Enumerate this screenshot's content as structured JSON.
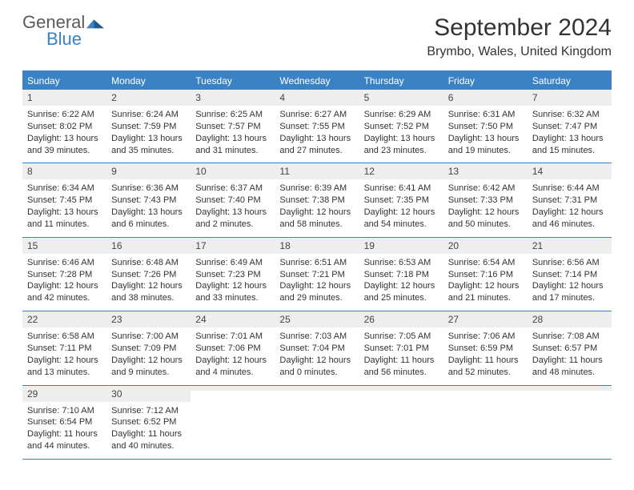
{
  "brand": {
    "name_part1": "General",
    "name_part2": "Blue",
    "color_gray": "#5a5a5a",
    "color_blue": "#3b82c4"
  },
  "title": "September 2024",
  "location": "Brymbo, Wales, United Kingdom",
  "accent_color": "#3b82c4",
  "header_bg": "#eeeeee",
  "day_names": [
    "Sunday",
    "Monday",
    "Tuesday",
    "Wednesday",
    "Thursday",
    "Friday",
    "Saturday"
  ],
  "days": [
    {
      "n": "1",
      "sunrise": "Sunrise: 6:22 AM",
      "sunset": "Sunset: 8:02 PM",
      "day1": "Daylight: 13 hours",
      "day2": "and 39 minutes."
    },
    {
      "n": "2",
      "sunrise": "Sunrise: 6:24 AM",
      "sunset": "Sunset: 7:59 PM",
      "day1": "Daylight: 13 hours",
      "day2": "and 35 minutes."
    },
    {
      "n": "3",
      "sunrise": "Sunrise: 6:25 AM",
      "sunset": "Sunset: 7:57 PM",
      "day1": "Daylight: 13 hours",
      "day2": "and 31 minutes."
    },
    {
      "n": "4",
      "sunrise": "Sunrise: 6:27 AM",
      "sunset": "Sunset: 7:55 PM",
      "day1": "Daylight: 13 hours",
      "day2": "and 27 minutes."
    },
    {
      "n": "5",
      "sunrise": "Sunrise: 6:29 AM",
      "sunset": "Sunset: 7:52 PM",
      "day1": "Daylight: 13 hours",
      "day2": "and 23 minutes."
    },
    {
      "n": "6",
      "sunrise": "Sunrise: 6:31 AM",
      "sunset": "Sunset: 7:50 PM",
      "day1": "Daylight: 13 hours",
      "day2": "and 19 minutes."
    },
    {
      "n": "7",
      "sunrise": "Sunrise: 6:32 AM",
      "sunset": "Sunset: 7:47 PM",
      "day1": "Daylight: 13 hours",
      "day2": "and 15 minutes."
    },
    {
      "n": "8",
      "sunrise": "Sunrise: 6:34 AM",
      "sunset": "Sunset: 7:45 PM",
      "day1": "Daylight: 13 hours",
      "day2": "and 11 minutes."
    },
    {
      "n": "9",
      "sunrise": "Sunrise: 6:36 AM",
      "sunset": "Sunset: 7:43 PM",
      "day1": "Daylight: 13 hours",
      "day2": "and 6 minutes."
    },
    {
      "n": "10",
      "sunrise": "Sunrise: 6:37 AM",
      "sunset": "Sunset: 7:40 PM",
      "day1": "Daylight: 13 hours",
      "day2": "and 2 minutes."
    },
    {
      "n": "11",
      "sunrise": "Sunrise: 6:39 AM",
      "sunset": "Sunset: 7:38 PM",
      "day1": "Daylight: 12 hours",
      "day2": "and 58 minutes."
    },
    {
      "n": "12",
      "sunrise": "Sunrise: 6:41 AM",
      "sunset": "Sunset: 7:35 PM",
      "day1": "Daylight: 12 hours",
      "day2": "and 54 minutes."
    },
    {
      "n": "13",
      "sunrise": "Sunrise: 6:42 AM",
      "sunset": "Sunset: 7:33 PM",
      "day1": "Daylight: 12 hours",
      "day2": "and 50 minutes."
    },
    {
      "n": "14",
      "sunrise": "Sunrise: 6:44 AM",
      "sunset": "Sunset: 7:31 PM",
      "day1": "Daylight: 12 hours",
      "day2": "and 46 minutes."
    },
    {
      "n": "15",
      "sunrise": "Sunrise: 6:46 AM",
      "sunset": "Sunset: 7:28 PM",
      "day1": "Daylight: 12 hours",
      "day2": "and 42 minutes."
    },
    {
      "n": "16",
      "sunrise": "Sunrise: 6:48 AM",
      "sunset": "Sunset: 7:26 PM",
      "day1": "Daylight: 12 hours",
      "day2": "and 38 minutes."
    },
    {
      "n": "17",
      "sunrise": "Sunrise: 6:49 AM",
      "sunset": "Sunset: 7:23 PM",
      "day1": "Daylight: 12 hours",
      "day2": "and 33 minutes."
    },
    {
      "n": "18",
      "sunrise": "Sunrise: 6:51 AM",
      "sunset": "Sunset: 7:21 PM",
      "day1": "Daylight: 12 hours",
      "day2": "and 29 minutes."
    },
    {
      "n": "19",
      "sunrise": "Sunrise: 6:53 AM",
      "sunset": "Sunset: 7:18 PM",
      "day1": "Daylight: 12 hours",
      "day2": "and 25 minutes."
    },
    {
      "n": "20",
      "sunrise": "Sunrise: 6:54 AM",
      "sunset": "Sunset: 7:16 PM",
      "day1": "Daylight: 12 hours",
      "day2": "and 21 minutes."
    },
    {
      "n": "21",
      "sunrise": "Sunrise: 6:56 AM",
      "sunset": "Sunset: 7:14 PM",
      "day1": "Daylight: 12 hours",
      "day2": "and 17 minutes."
    },
    {
      "n": "22",
      "sunrise": "Sunrise: 6:58 AM",
      "sunset": "Sunset: 7:11 PM",
      "day1": "Daylight: 12 hours",
      "day2": "and 13 minutes."
    },
    {
      "n": "23",
      "sunrise": "Sunrise: 7:00 AM",
      "sunset": "Sunset: 7:09 PM",
      "day1": "Daylight: 12 hours",
      "day2": "and 9 minutes."
    },
    {
      "n": "24",
      "sunrise": "Sunrise: 7:01 AM",
      "sunset": "Sunset: 7:06 PM",
      "day1": "Daylight: 12 hours",
      "day2": "and 4 minutes."
    },
    {
      "n": "25",
      "sunrise": "Sunrise: 7:03 AM",
      "sunset": "Sunset: 7:04 PM",
      "day1": "Daylight: 12 hours",
      "day2": "and 0 minutes."
    },
    {
      "n": "26",
      "sunrise": "Sunrise: 7:05 AM",
      "sunset": "Sunset: 7:01 PM",
      "day1": "Daylight: 11 hours",
      "day2": "and 56 minutes."
    },
    {
      "n": "27",
      "sunrise": "Sunrise: 7:06 AM",
      "sunset": "Sunset: 6:59 PM",
      "day1": "Daylight: 11 hours",
      "day2": "and 52 minutes."
    },
    {
      "n": "28",
      "sunrise": "Sunrise: 7:08 AM",
      "sunset": "Sunset: 6:57 PM",
      "day1": "Daylight: 11 hours",
      "day2": "and 48 minutes."
    },
    {
      "n": "29",
      "sunrise": "Sunrise: 7:10 AM",
      "sunset": "Sunset: 6:54 PM",
      "day1": "Daylight: 11 hours",
      "day2": "and 44 minutes."
    },
    {
      "n": "30",
      "sunrise": "Sunrise: 7:12 AM",
      "sunset": "Sunset: 6:52 PM",
      "day1": "Daylight: 11 hours",
      "day2": "and 40 minutes."
    }
  ]
}
